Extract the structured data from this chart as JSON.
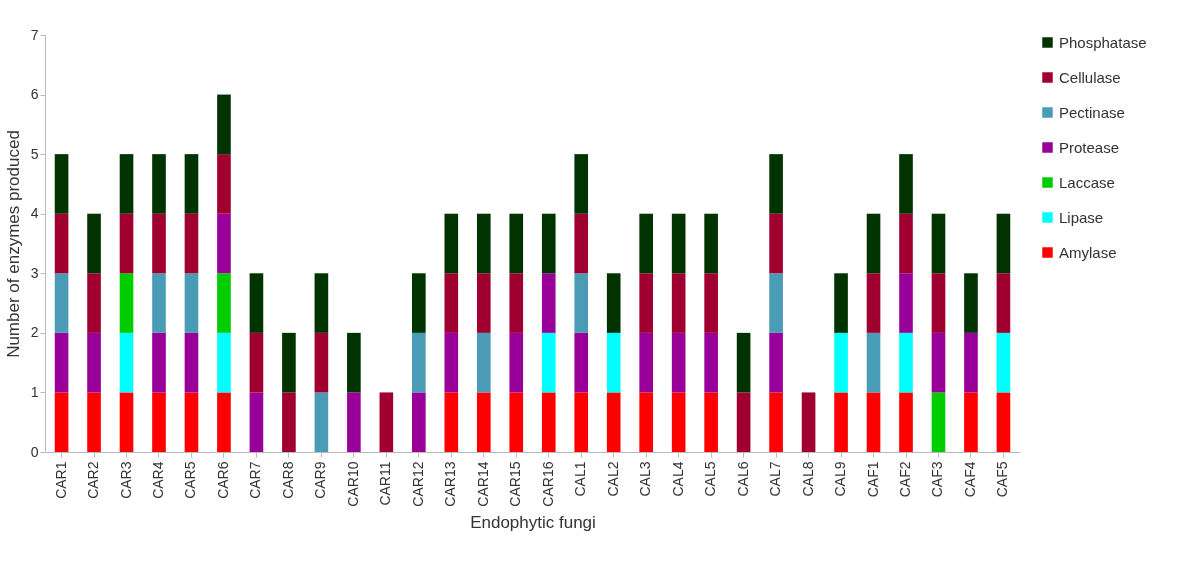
{
  "chart_data": {
    "type": "bar",
    "stacked": true,
    "xlabel": "Endophytic fungi",
    "ylabel": "Number of enzymes  produced",
    "categories": [
      "CAR1",
      "CAR2",
      "CAR3",
      "CAR4",
      "CAR5",
      "CAR6",
      "CAR7",
      "CAR8",
      "CAR9",
      "CAR10",
      "CAR11",
      "CAR12",
      "CAR13",
      "CAR14",
      "CAR15",
      "CAR16",
      "CAL1",
      "CAL2",
      "CAL3",
      "CAL4",
      "CAL5",
      "CAL6",
      "CAL7",
      "CAL8",
      "CAL9",
      "CAF1",
      "CAF2",
      "CAF3",
      "CAF4",
      "CAF5"
    ],
    "series": [
      {
        "name": "Amylase",
        "color": "#ff0000",
        "values": [
          1,
          1,
          1,
          1,
          1,
          1,
          0,
          0,
          0,
          0,
          0,
          0,
          1,
          1,
          1,
          1,
          1,
          1,
          1,
          1,
          1,
          0,
          1,
          0,
          1,
          1,
          1,
          0,
          1,
          1
        ]
      },
      {
        "name": "Lipase",
        "color": "#00ffff",
        "values": [
          0,
          0,
          1,
          0,
          0,
          1,
          0,
          0,
          0,
          0,
          0,
          0,
          0,
          0,
          0,
          1,
          0,
          1,
          0,
          0,
          0,
          0,
          0,
          0,
          1,
          0,
          1,
          0,
          0,
          1
        ]
      },
      {
        "name": "Laccase",
        "color": "#00cc00",
        "values": [
          0,
          0,
          1,
          0,
          0,
          1,
          0,
          0,
          0,
          0,
          0,
          0,
          0,
          0,
          0,
          0,
          0,
          0,
          0,
          0,
          0,
          0,
          0,
          0,
          0,
          0,
          0,
          1,
          0,
          0
        ]
      },
      {
        "name": "Protease",
        "color": "#990099",
        "values": [
          1,
          1,
          0,
          1,
          1,
          1,
          1,
          0,
          0,
          1,
          0,
          1,
          1,
          0,
          1,
          1,
          1,
          0,
          1,
          1,
          1,
          0,
          1,
          0,
          0,
          0,
          1,
          1,
          1,
          0
        ]
      },
      {
        "name": "Pectinase",
        "color": "#4a9bb5",
        "values": [
          1,
          0,
          0,
          1,
          1,
          0,
          0,
          0,
          1,
          0,
          0,
          1,
          0,
          1,
          0,
          0,
          1,
          0,
          0,
          0,
          0,
          0,
          1,
          0,
          0,
          1,
          0,
          0,
          0,
          0
        ]
      },
      {
        "name": "Cellulase",
        "color": "#a00030",
        "values": [
          1,
          1,
          1,
          1,
          1,
          1,
          1,
          1,
          1,
          0,
          1,
          0,
          1,
          1,
          1,
          0,
          1,
          0,
          1,
          1,
          1,
          1,
          1,
          1,
          0,
          1,
          1,
          1,
          0,
          1
        ]
      },
      {
        "name": "Phosphatase",
        "color": "#003300",
        "values": [
          1,
          1,
          1,
          1,
          1,
          1,
          1,
          1,
          1,
          1,
          0,
          1,
          1,
          1,
          1,
          1,
          1,
          1,
          1,
          1,
          1,
          1,
          1,
          0,
          1,
          1,
          1,
          1,
          1,
          1
        ]
      }
    ],
    "ylim": [
      0,
      7
    ],
    "yticks": [
      0,
      1,
      2,
      3,
      4,
      5,
      6,
      7
    ],
    "grid": false,
    "legend": "right"
  }
}
